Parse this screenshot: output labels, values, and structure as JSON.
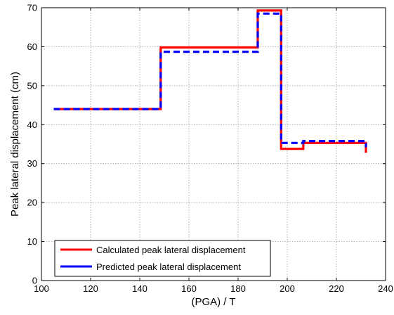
{
  "chart_data": {
    "type": "line",
    "xlabel": "(PGA) / T",
    "ylabel": "Peak lateral displacement (cm)",
    "xlim": [
      100,
      240
    ],
    "ylim": [
      0,
      70
    ],
    "x_ticks": [
      100,
      120,
      140,
      160,
      180,
      200,
      220,
      240
    ],
    "y_ticks": [
      0,
      10,
      20,
      30,
      40,
      50,
      60,
      70
    ],
    "grid": true,
    "legend_position": "bottom-left",
    "series": [
      {
        "name": "Calculated peak lateral displacement",
        "color": "#ff0000",
        "style": "solid",
        "x": [
          105,
          148.5,
          148.5,
          188,
          188,
          197.5,
          197.5,
          206.5,
          206.5,
          232,
          232
        ],
        "y": [
          44,
          44,
          59.8,
          59.8,
          69.3,
          69.3,
          33.8,
          33.8,
          35.3,
          35.3,
          32.8
        ]
      },
      {
        "name": "Predicted peak lateral displacement",
        "color": "#0000ff",
        "style": "dashed",
        "x": [
          105,
          148.5,
          148.5,
          188,
          188,
          197.5,
          197.5,
          206.5,
          206.5,
          232,
          232
        ],
        "y": [
          44,
          44,
          58.7,
          58.7,
          68.5,
          68.5,
          35.3,
          35.3,
          35.8,
          35.8,
          34.2
        ]
      }
    ]
  }
}
